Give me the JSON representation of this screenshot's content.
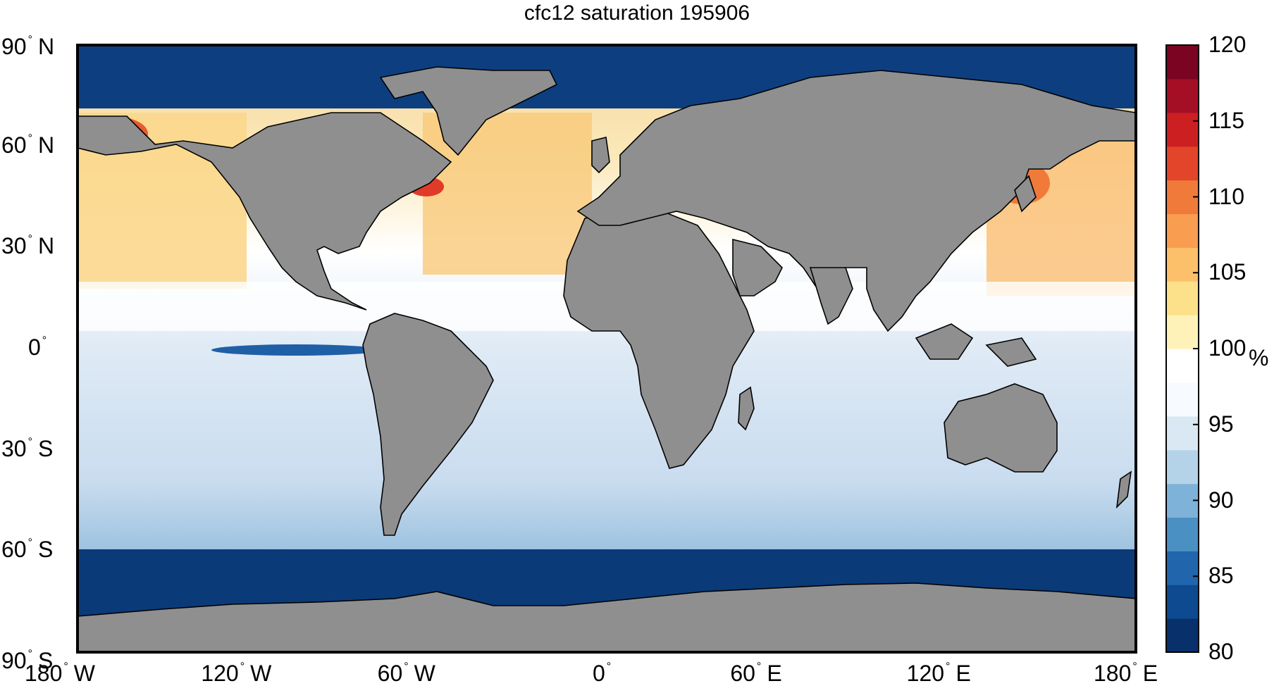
{
  "title": "cfc12 saturation 195906",
  "map": {
    "projection": "equirectangular",
    "lon_range": [
      -180,
      180
    ],
    "lat_range": [
      -90,
      90
    ],
    "land_color": "#8f8f8f",
    "coast_color": "#000000",
    "lat_ticks": [
      {
        "deg": "90",
        "hemi": "N",
        "lat": 90
      },
      {
        "deg": "60",
        "hemi": "N",
        "lat": 60
      },
      {
        "deg": "30",
        "hemi": "N",
        "lat": 30
      },
      {
        "deg": "0",
        "hemi": "",
        "lat": 0
      },
      {
        "deg": "30",
        "hemi": "S",
        "lat": -30
      },
      {
        "deg": "60",
        "hemi": "S",
        "lat": -60
      },
      {
        "deg": "90",
        "hemi": "S",
        "lat": -90
      }
    ],
    "lon_ticks": [
      {
        "deg": "180",
        "hemi": "W",
        "lon": -180
      },
      {
        "deg": "120",
        "hemi": "W",
        "lon": -120
      },
      {
        "deg": "60",
        "hemi": "W",
        "lon": -60
      },
      {
        "deg": "0",
        "hemi": "",
        "lon": 0
      },
      {
        "deg": "60",
        "hemi": "E",
        "lon": 60
      },
      {
        "deg": "120",
        "hemi": "E",
        "lon": 120
      },
      {
        "deg": "180",
        "hemi": "E",
        "lon": 180
      }
    ]
  },
  "colorbar": {
    "min": 80,
    "max": 120,
    "ticks": [
      "120",
      "115",
      "110",
      "105",
      "100",
      "95",
      "90",
      "85",
      "80"
    ],
    "unit": "%",
    "colors": [
      "#08306b",
      "#0d4a8f",
      "#2166ac",
      "#4a90c2",
      "#7fb2d8",
      "#b5d3e8",
      "#d9e8f3",
      "#f7fbff",
      "#ffffff",
      "#fff2b8",
      "#fde08a",
      "#fdc06a",
      "#f99d50",
      "#f07a3a",
      "#e2452a",
      "#cc1f22",
      "#a50f26",
      "#7a0422"
    ]
  }
}
